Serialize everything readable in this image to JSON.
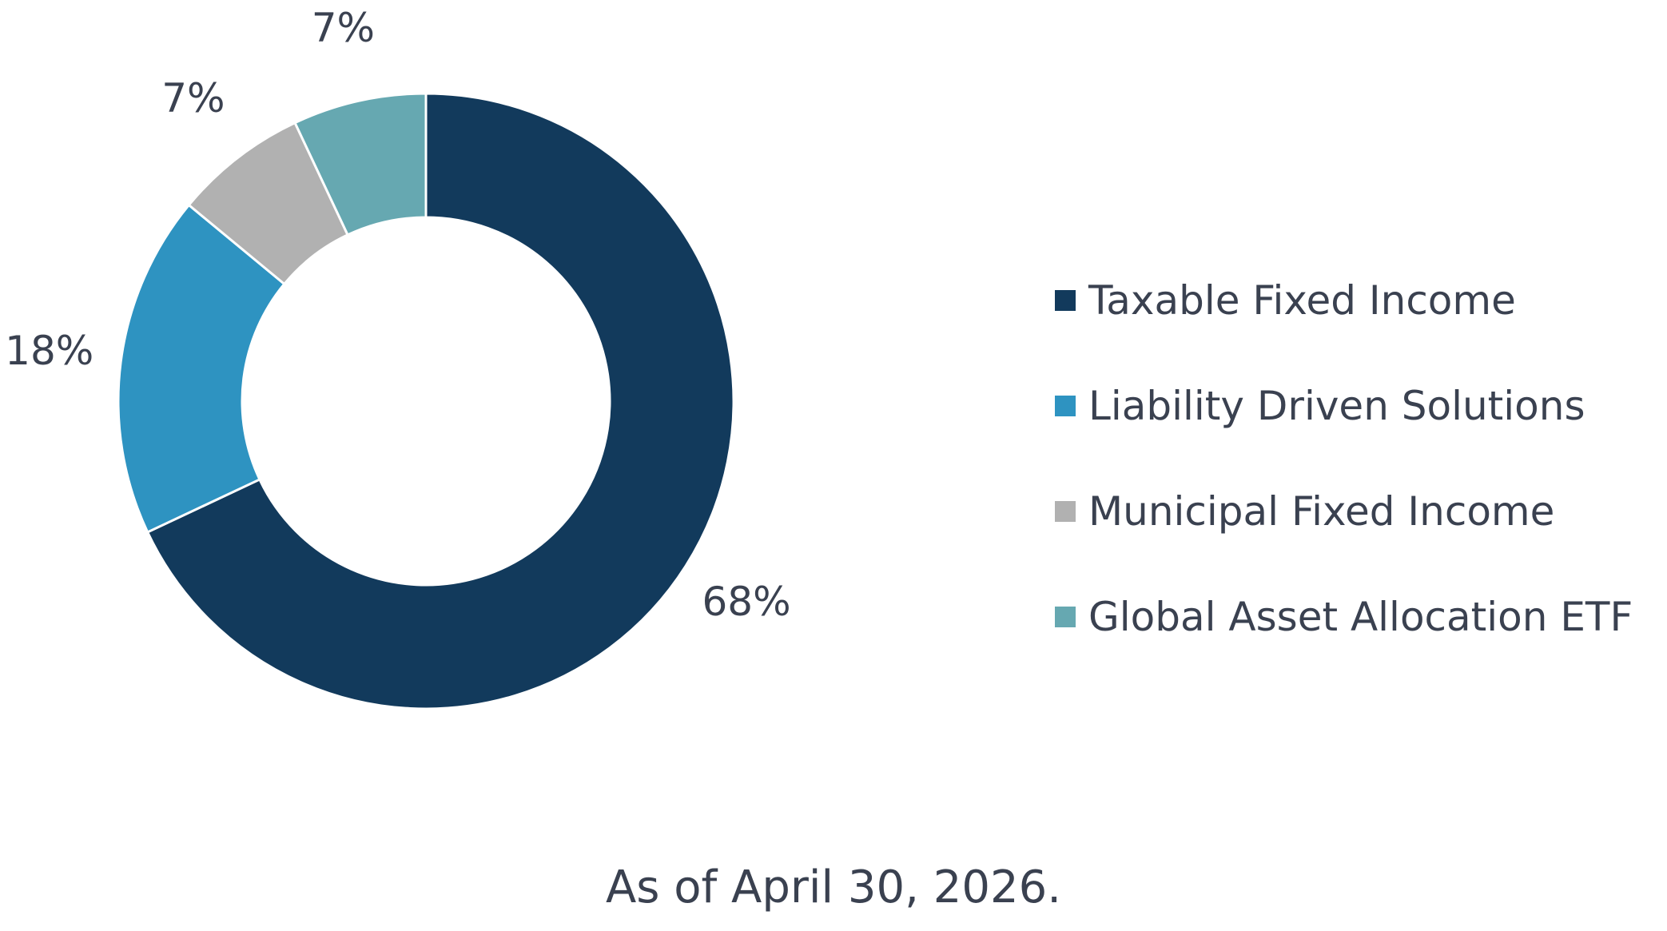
{
  "chart_data": {
    "type": "pie",
    "categories": [
      "Taxable Fixed Income",
      "Liability Driven Solutions",
      "Municipal Fixed Income",
      "Global Asset Allocation ETF"
    ],
    "values": [
      68,
      18,
      7,
      7
    ],
    "labels": [
      "68%",
      "18%",
      "7%",
      "7%"
    ],
    "colors": [
      "#123a5c",
      "#2e93c1",
      "#b1b1b1",
      "#66a8b1"
    ],
    "donut": true,
    "legend_position": "right"
  },
  "footnote": "As of April 30, 2026."
}
